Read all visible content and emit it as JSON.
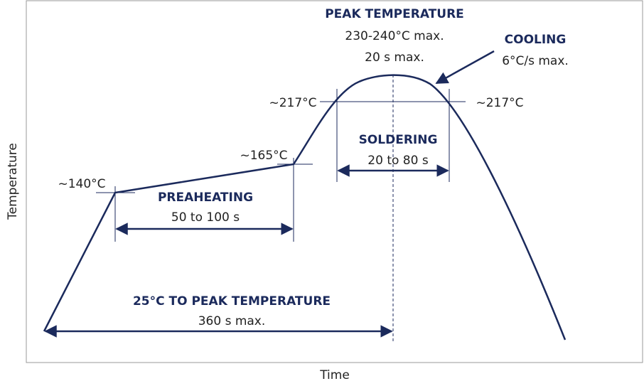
{
  "axes": {
    "y_label": "Temperature",
    "x_label": "Time"
  },
  "temperature_marks": [
    "~140°C",
    "~165°C",
    "~217°C",
    "~217°C"
  ],
  "peak": {
    "title": "PEAK TEMPERATURE",
    "range": "230-240°C max.",
    "duration": "20 s max."
  },
  "cooling": {
    "title": "COOLING",
    "rate": "6°C/s max."
  },
  "soldering": {
    "title": "SOLDERING",
    "duration": "20 to 80 s"
  },
  "preheating": {
    "title": "PREAHEATING",
    "duration": "50 to 100 s"
  },
  "total": {
    "title": "25°C TO PEAK TEMPERATURE",
    "duration": "360 s max."
  }
}
